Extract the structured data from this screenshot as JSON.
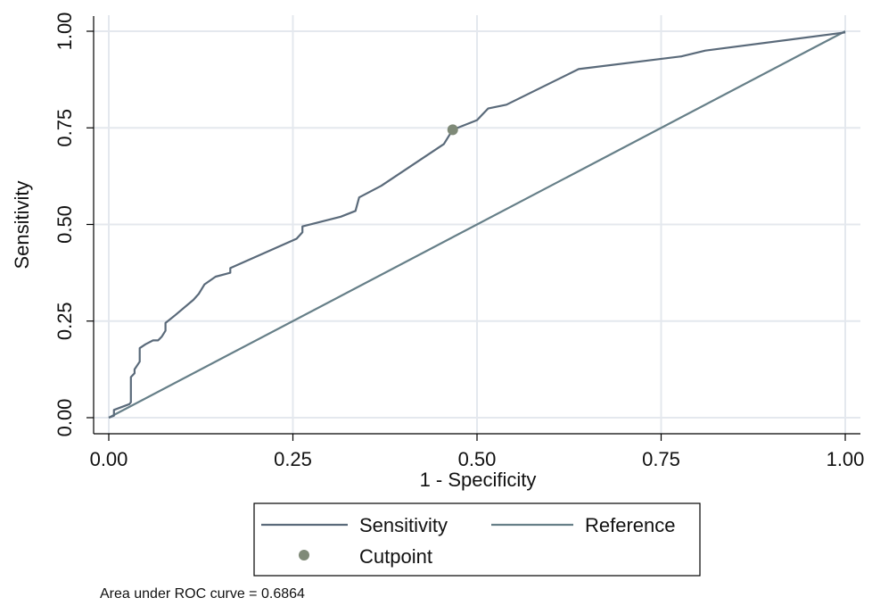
{
  "chart_data": {
    "type": "line",
    "xlabel": "1 - Specificity",
    "ylabel": "Sensitivity",
    "xlim": [
      0,
      1
    ],
    "ylim": [
      0,
      1
    ],
    "x_ticks": [
      "0.00",
      "0.25",
      "0.50",
      "0.75",
      "1.00"
    ],
    "y_ticks": [
      "0.00",
      "0.25",
      "0.50",
      "0.75",
      "1.00"
    ],
    "grid": true,
    "legend_position": "bottom",
    "colors": {
      "sensitivity": "#5a6a7a",
      "reference": "#667f88",
      "cutpoint": "#7f8a78",
      "grid": "#e4e8ee"
    },
    "series": [
      {
        "name": "Sensitivity",
        "x": [
          0,
          0.007,
          0.007,
          0.028,
          0.03,
          0.03,
          0.035,
          0.035,
          0.042,
          0.042,
          0.05,
          0.06,
          0.067,
          0.072,
          0.077,
          0.077,
          0.09,
          0.115,
          0.122,
          0.13,
          0.145,
          0.165,
          0.165,
          0.255,
          0.263,
          0.263,
          0.315,
          0.335,
          0.34,
          0.37,
          0.455,
          0.467,
          0.5,
          0.515,
          0.54,
          0.638,
          0.778,
          0.81,
          1.0
        ],
        "y": [
          0,
          0.005,
          0.02,
          0.035,
          0.04,
          0.105,
          0.115,
          0.125,
          0.145,
          0.18,
          0.19,
          0.2,
          0.2,
          0.21,
          0.225,
          0.245,
          0.265,
          0.305,
          0.32,
          0.345,
          0.365,
          0.375,
          0.387,
          0.463,
          0.48,
          0.495,
          0.52,
          0.535,
          0.57,
          0.6,
          0.708,
          0.745,
          0.77,
          0.8,
          0.81,
          0.902,
          0.935,
          0.95,
          0.997
        ]
      },
      {
        "name": "Reference",
        "x": [
          0,
          1
        ],
        "y": [
          0,
          1
        ]
      }
    ],
    "cutpoint": {
      "name": "Cutpoint",
      "x": 0.467,
      "y": 0.745
    }
  },
  "legend": {
    "sensitivity_label": "Sensitivity",
    "reference_label": "Reference",
    "cutpoint_label": "Cutpoint"
  },
  "footnote": "Area under ROC curve = 0.6864"
}
